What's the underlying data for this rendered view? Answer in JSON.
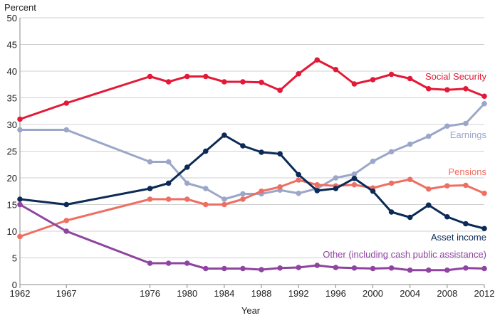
{
  "chart_data": {
    "type": "line",
    "title": "",
    "ylabel": "Percent",
    "xlabel": "Year",
    "ylim": [
      0,
      50
    ],
    "xlim": [
      1962,
      2012
    ],
    "yticks": [
      0,
      5,
      10,
      15,
      20,
      25,
      30,
      35,
      40,
      45,
      50
    ],
    "xticks": [
      1962,
      1967,
      1976,
      1980,
      1984,
      1988,
      1992,
      1996,
      2000,
      2004,
      2008,
      2012
    ],
    "grid": true,
    "x": [
      1962,
      1967,
      1976,
      1978,
      1980,
      1982,
      1984,
      1986,
      1988,
      1990,
      1992,
      1994,
      1996,
      1998,
      2000,
      2002,
      2004,
      2006,
      2008,
      2010,
      2012
    ],
    "series": [
      {
        "name": "Social Security",
        "color": "#e31937",
        "values": [
          31,
          34,
          39,
          38,
          39,
          39,
          38,
          38,
          37.9,
          36.4,
          39.5,
          42.1,
          40.3,
          37.6,
          38.4,
          39.4,
          38.6,
          36.7,
          36.5,
          36.7,
          35.3
        ]
      },
      {
        "name": "Earnings",
        "color": "#9ba6c9",
        "values": [
          29,
          29,
          23,
          23,
          19,
          18,
          16,
          17,
          17,
          17.7,
          17.1,
          18,
          20,
          20.7,
          23.1,
          24.9,
          26.3,
          27.8,
          29.7,
          30.2,
          33.9
        ]
      },
      {
        "name": "Pensions",
        "color": "#ee6f62",
        "values": [
          9,
          12,
          16,
          16,
          16,
          15,
          15,
          16,
          17.5,
          18.3,
          19.6,
          18.7,
          18.5,
          18.7,
          18.1,
          19,
          19.7,
          17.9,
          18.5,
          18.6,
          17.1
        ]
      },
      {
        "name": "Asset income",
        "color": "#0b2a55",
        "values": [
          16,
          15,
          18,
          19,
          22,
          25,
          28,
          26,
          24.8,
          24.5,
          20.6,
          17.6,
          18,
          19.9,
          17.5,
          13.6,
          12.6,
          14.9,
          12.7,
          11.4,
          10.5
        ]
      },
      {
        "name": "Other (including cash public assistance)",
        "color": "#8e44a0",
        "values": [
          15,
          10,
          4,
          4,
          4,
          3,
          3,
          3,
          2.8,
          3.1,
          3.2,
          3.6,
          3.2,
          3.1,
          3.0,
          3.1,
          2.7,
          2.7,
          2.7,
          3.1,
          3.0
        ]
      }
    ]
  }
}
